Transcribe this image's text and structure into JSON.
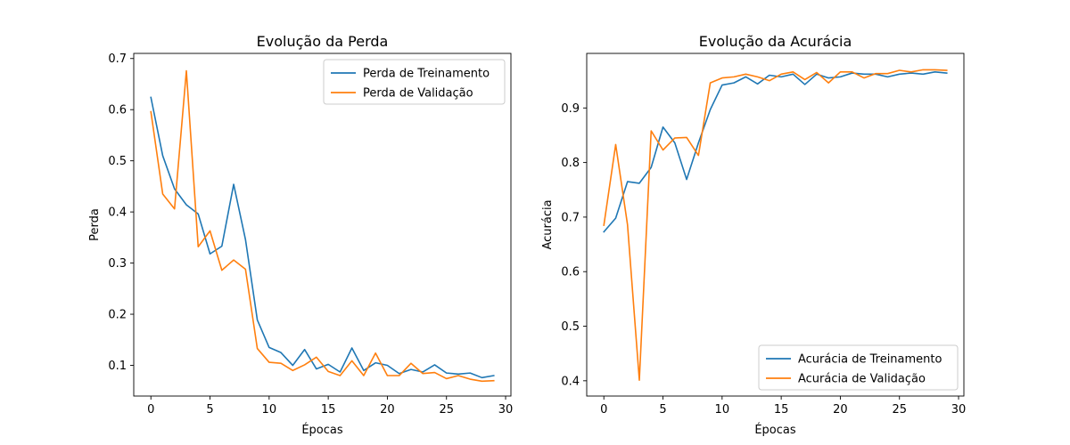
{
  "colors": {
    "train": "#1f77b4",
    "validation": "#ff7f0e"
  },
  "chart_data": [
    {
      "type": "line",
      "title": "Evolução da Perda",
      "xlabel": "Épocas",
      "ylabel": "Perda",
      "xlim": [
        -1.45,
        30.45
      ],
      "ylim": [
        0.04,
        0.71
      ],
      "xticks": [
        0,
        5,
        10,
        15,
        20,
        25,
        30
      ],
      "yticks": [
        0.1,
        0.2,
        0.3,
        0.4,
        0.5,
        0.6,
        0.7
      ],
      "legend_position": "top-right",
      "x": [
        0,
        1,
        2,
        3,
        4,
        5,
        6,
        7,
        8,
        9,
        10,
        11,
        12,
        13,
        14,
        15,
        16,
        17,
        18,
        19,
        20,
        21,
        22,
        23,
        24,
        25,
        26,
        27,
        28,
        29
      ],
      "series": [
        {
          "name": "Perda de Treinamento",
          "values": [
            0.624,
            0.51,
            0.445,
            0.414,
            0.396,
            0.318,
            0.333,
            0.454,
            0.346,
            0.189,
            0.135,
            0.125,
            0.1,
            0.131,
            0.093,
            0.102,
            0.087,
            0.134,
            0.09,
            0.105,
            0.1,
            0.084,
            0.092,
            0.087,
            0.101,
            0.085,
            0.083,
            0.085,
            0.076,
            0.08
          ]
        },
        {
          "name": "Perda de Validação",
          "values": [
            0.596,
            0.435,
            0.406,
            0.676,
            0.332,
            0.363,
            0.286,
            0.306,
            0.288,
            0.133,
            0.106,
            0.104,
            0.09,
            0.101,
            0.116,
            0.088,
            0.08,
            0.109,
            0.08,
            0.124,
            0.08,
            0.08,
            0.104,
            0.084,
            0.086,
            0.074,
            0.08,
            0.073,
            0.069,
            0.07
          ]
        }
      ]
    },
    {
      "type": "line",
      "title": "Evolução da Acurácia",
      "xlabel": "Épocas",
      "ylabel": "Acurácia",
      "xlim": [
        -1.45,
        30.45
      ],
      "ylim": [
        0.372,
        1.0
      ],
      "xticks": [
        0,
        5,
        10,
        15,
        20,
        25,
        30
      ],
      "yticks": [
        0.4,
        0.5,
        0.6,
        0.7,
        0.8,
        0.9
      ],
      "legend_position": "bottom-right",
      "x": [
        0,
        1,
        2,
        3,
        4,
        5,
        6,
        7,
        8,
        9,
        10,
        11,
        12,
        13,
        14,
        15,
        16,
        17,
        18,
        19,
        20,
        21,
        22,
        23,
        24,
        25,
        26,
        27,
        28,
        29
      ],
      "series": [
        {
          "name": "Acurácia de Treinamento",
          "values": [
            0.673,
            0.698,
            0.765,
            0.762,
            0.791,
            0.865,
            0.836,
            0.769,
            0.836,
            0.897,
            0.942,
            0.946,
            0.957,
            0.944,
            0.96,
            0.957,
            0.962,
            0.943,
            0.962,
            0.955,
            0.957,
            0.964,
            0.962,
            0.962,
            0.957,
            0.962,
            0.964,
            0.962,
            0.966,
            0.964
          ]
        },
        {
          "name": "Acurácia de Validação",
          "values": [
            0.685,
            0.833,
            0.686,
            0.401,
            0.858,
            0.823,
            0.845,
            0.846,
            0.813,
            0.946,
            0.955,
            0.957,
            0.962,
            0.957,
            0.95,
            0.962,
            0.966,
            0.952,
            0.965,
            0.946,
            0.966,
            0.966,
            0.955,
            0.963,
            0.963,
            0.969,
            0.966,
            0.97,
            0.97,
            0.969
          ]
        }
      ]
    }
  ]
}
